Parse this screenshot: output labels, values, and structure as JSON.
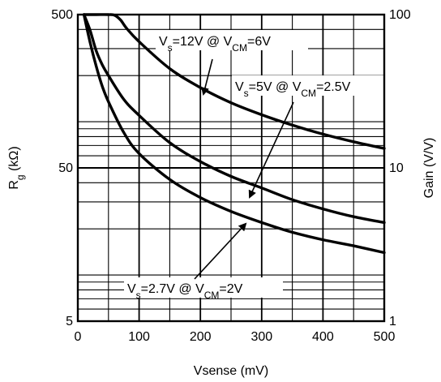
{
  "chart_data": {
    "type": "line",
    "xlabel": "Vsense (mV)",
    "ylabel_left": {
      "main": "R",
      "sub": "g",
      "unit": " (kΩ)"
    },
    "ylabel_right": "Gain (V/V)",
    "xlim": [
      0,
      500
    ],
    "ylim_left": [
      5,
      500
    ],
    "ylim_right": [
      1,
      100
    ],
    "y_scale": "log",
    "grid": true,
    "x_ticks": [
      "0",
      "100",
      "200",
      "300",
      "400",
      "500"
    ],
    "y_ticks_left": [
      "5",
      "50",
      "500"
    ],
    "y_ticks_right": [
      "1",
      "10",
      "100"
    ],
    "series": [
      {
        "label": {
          "a": "V",
          "as": "s",
          "b": "=12V @ V",
          "bs": "CM",
          "c": "=6V"
        },
        "x": [
          10,
          30,
          50,
          60,
          70,
          80,
          100,
          150,
          200,
          250,
          300,
          350,
          400,
          450,
          500
        ],
        "y": [
          500,
          500,
          500,
          495,
          460,
          405,
          333,
          222,
          167,
          133,
          111,
          95,
          83,
          74,
          67
        ]
      },
      {
        "label": {
          "a": "V",
          "as": "s",
          "b": "=5V @ V",
          "bs": "CM",
          "c": "=2.5V"
        },
        "x": [
          10,
          20,
          30,
          40,
          50,
          75,
          100,
          150,
          200,
          250,
          300,
          350,
          400,
          450,
          500
        ],
        "y": [
          500,
          395,
          290,
          235,
          200,
          140,
          110,
          73,
          55,
          44,
          37,
          31,
          27,
          24,
          22
        ]
      },
      {
        "label": {
          "a": "V",
          "as": "s",
          "b": "=2.7V @ V",
          "bs": "CM",
          "c": "=2V"
        },
        "x": [
          10,
          20,
          30,
          40,
          50,
          75,
          100,
          150,
          200,
          250,
          300,
          350,
          400,
          450,
          500
        ],
        "y": [
          500,
          330,
          230,
          170,
          135,
          85,
          62,
          42,
          32,
          26,
          22,
          19,
          17,
          15.5,
          14
        ]
      }
    ]
  }
}
